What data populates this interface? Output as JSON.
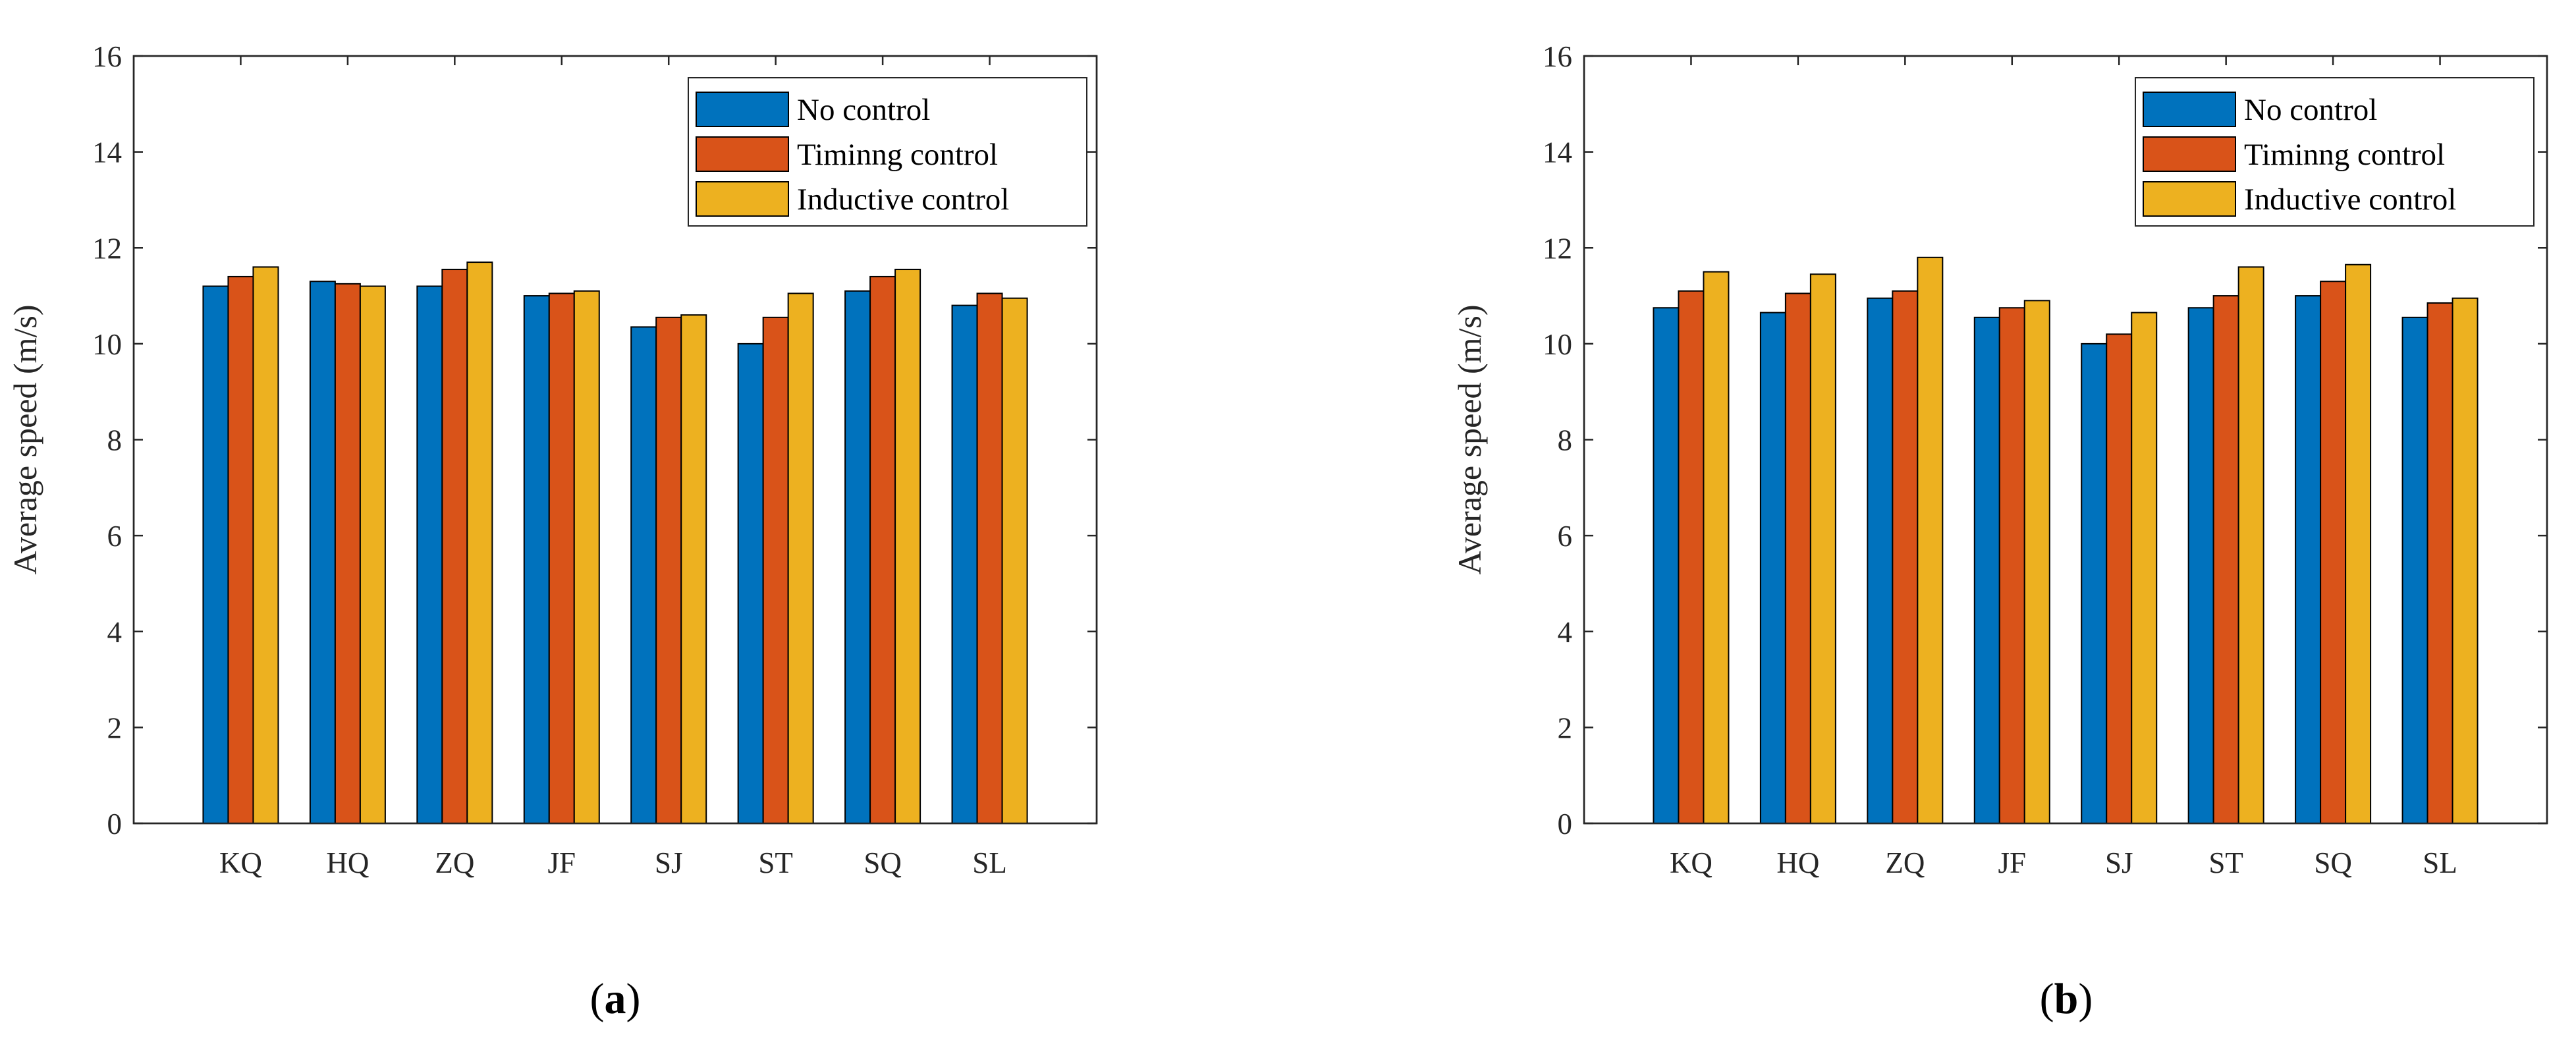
{
  "chart_data": [
    {
      "type": "bar",
      "panel_label": "a",
      "categories": [
        "KQ",
        "HQ",
        "ZQ",
        "JF",
        "SJ",
        "ST",
        "SQ",
        "SL"
      ],
      "series": [
        {
          "name": "No control",
          "color": "#0072BD",
          "values": [
            11.2,
            11.3,
            11.2,
            11.0,
            10.35,
            10.0,
            11.1,
            10.8
          ]
        },
        {
          "name": "Timinng control",
          "color": "#D95319",
          "values": [
            11.4,
            11.25,
            11.55,
            11.05,
            10.55,
            10.55,
            11.4,
            11.05
          ]
        },
        {
          "name": "Inductive control",
          "color": "#EDB120",
          "values": [
            11.6,
            11.2,
            11.7,
            11.1,
            10.6,
            11.05,
            11.55,
            10.95
          ]
        }
      ],
      "ylabel": "Average speed (m/s)",
      "xlabel": "",
      "ylim": [
        0,
        16
      ],
      "yticks": [
        0,
        2,
        4,
        6,
        8,
        10,
        12,
        14,
        16
      ],
      "legend_position": "top-right"
    },
    {
      "type": "bar",
      "panel_label": "b",
      "categories": [
        "KQ",
        "HQ",
        "ZQ",
        "JF",
        "SJ",
        "ST",
        "SQ",
        "SL"
      ],
      "series": [
        {
          "name": "No control",
          "color": "#0072BD",
          "values": [
            10.75,
            10.65,
            10.95,
            10.55,
            10.0,
            10.75,
            11.0,
            10.55
          ]
        },
        {
          "name": "Timinng control",
          "color": "#D95319",
          "values": [
            11.1,
            11.05,
            11.1,
            10.75,
            10.2,
            11.0,
            11.3,
            10.85
          ]
        },
        {
          "name": "Inductive control",
          "color": "#EDB120",
          "values": [
            11.5,
            11.45,
            11.8,
            10.9,
            10.65,
            11.6,
            11.65,
            10.95
          ]
        }
      ],
      "ylabel": "Average speed (m/s)",
      "xlabel": "",
      "ylim": [
        0,
        16
      ],
      "yticks": [
        0,
        2,
        4,
        6,
        8,
        10,
        12,
        14,
        16
      ],
      "legend_position": "top-right"
    }
  ]
}
